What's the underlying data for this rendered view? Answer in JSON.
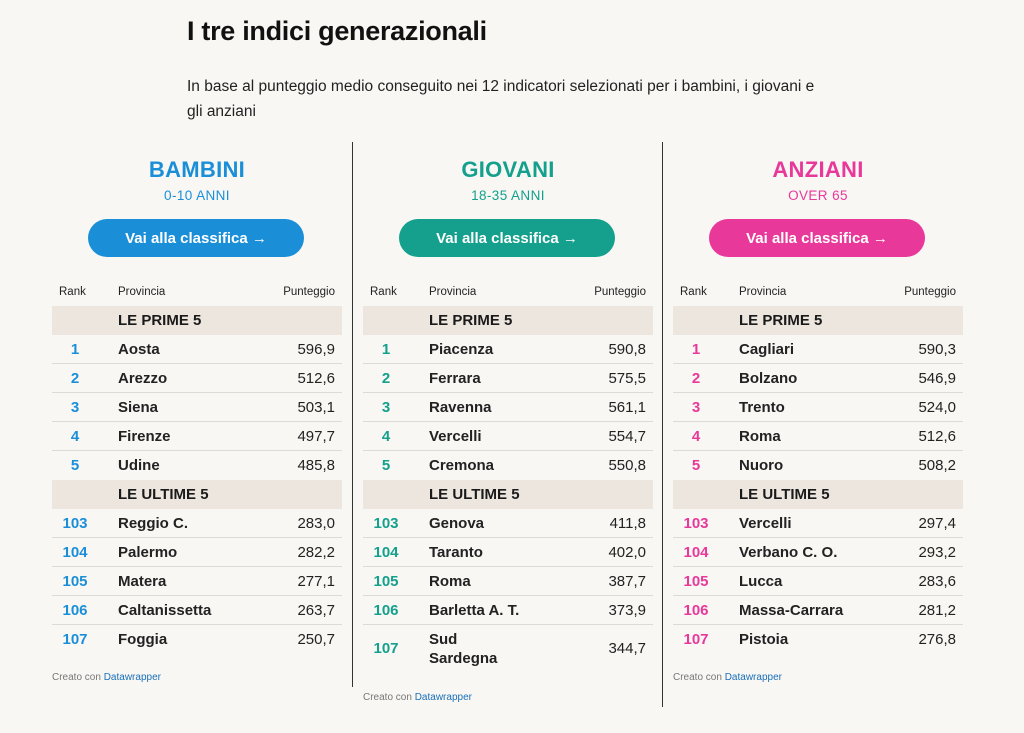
{
  "page": {
    "title": "I tre indici generazionali",
    "subtitle": "In base al punteggio medio conseguito nei 12 indicatori selezionati per i bambini, i giovani e gli anziani"
  },
  "table_headers": {
    "rank": "Rank",
    "provincia": "Provincia",
    "punteggio": "Punteggio"
  },
  "credit": {
    "prefix": "Creato con ",
    "link": "Datawrapper"
  },
  "panels": [
    {
      "title": "BAMBINI",
      "subtitle": "0-10 ANNI",
      "button": "Vai alla classifica →",
      "color": "#1a8fd8",
      "top_label": "LE PRIME 5",
      "bottom_label": "LE ULTIME 5",
      "top": [
        {
          "rank": "1",
          "provincia": "Aosta",
          "punteggio": "596,9"
        },
        {
          "rank": "2",
          "provincia": "Arezzo",
          "punteggio": "512,6"
        },
        {
          "rank": "3",
          "provincia": "Siena",
          "punteggio": "503,1"
        },
        {
          "rank": "4",
          "provincia": "Firenze",
          "punteggio": "497,7"
        },
        {
          "rank": "5",
          "provincia": "Udine",
          "punteggio": "485,8"
        }
      ],
      "bottom": [
        {
          "rank": "103",
          "provincia": "Reggio C.",
          "punteggio": "283,0"
        },
        {
          "rank": "104",
          "provincia": "Palermo",
          "punteggio": "282,2"
        },
        {
          "rank": "105",
          "provincia": "Matera",
          "punteggio": "277,1"
        },
        {
          "rank": "106",
          "provincia": "Caltanissetta",
          "punteggio": "263,7"
        },
        {
          "rank": "107",
          "provincia": "Foggia",
          "punteggio": "250,7"
        }
      ]
    },
    {
      "title": "GIOVANI",
      "subtitle": "18-35 ANNI",
      "button": "Vai alla classifica →",
      "color": "#14a08c",
      "top_label": "LE PRIME 5",
      "bottom_label": "LE ULTIME 5",
      "top": [
        {
          "rank": "1",
          "provincia": "Piacenza",
          "punteggio": "590,8"
        },
        {
          "rank": "2",
          "provincia": "Ferrara",
          "punteggio": "575,5"
        },
        {
          "rank": "3",
          "provincia": "Ravenna",
          "punteggio": "561,1"
        },
        {
          "rank": "4",
          "provincia": "Vercelli",
          "punteggio": "554,7"
        },
        {
          "rank": "5",
          "provincia": "Cremona",
          "punteggio": "550,8"
        }
      ],
      "bottom": [
        {
          "rank": "103",
          "provincia": "Genova",
          "punteggio": "411,8"
        },
        {
          "rank": "104",
          "provincia": "Taranto",
          "punteggio": "402,0"
        },
        {
          "rank": "105",
          "provincia": "Roma",
          "punteggio": "387,7"
        },
        {
          "rank": "106",
          "provincia": "Barletta A. T.",
          "punteggio": "373,9"
        },
        {
          "rank": "107",
          "provincia": "Sud\nSardegna",
          "punteggio": "344,7"
        }
      ]
    },
    {
      "title": "ANZIANI",
      "subtitle": "OVER 65",
      "button": "Vai alla classifica →",
      "color": "#e8389a",
      "top_label": "LE PRIME 5",
      "bottom_label": "LE ULTIME 5",
      "top": [
        {
          "rank": "1",
          "provincia": "Cagliari",
          "punteggio": "590,3"
        },
        {
          "rank": "2",
          "provincia": "Bolzano",
          "punteggio": "546,9"
        },
        {
          "rank": "3",
          "provincia": "Trento",
          "punteggio": "524,0"
        },
        {
          "rank": "4",
          "provincia": "Roma",
          "punteggio": "512,6"
        },
        {
          "rank": "5",
          "provincia": "Nuoro",
          "punteggio": "508,2"
        }
      ],
      "bottom": [
        {
          "rank": "103",
          "provincia": "Vercelli",
          "punteggio": "297,4"
        },
        {
          "rank": "104",
          "provincia": "Verbano C. O.",
          "punteggio": "293,2"
        },
        {
          "rank": "105",
          "provincia": "Lucca",
          "punteggio": "283,6"
        },
        {
          "rank": "106",
          "provincia": "Massa-Carrara",
          "punteggio": "281,2"
        },
        {
          "rank": "107",
          "provincia": "Pistoia",
          "punteggio": "276,8"
        }
      ]
    }
  ]
}
